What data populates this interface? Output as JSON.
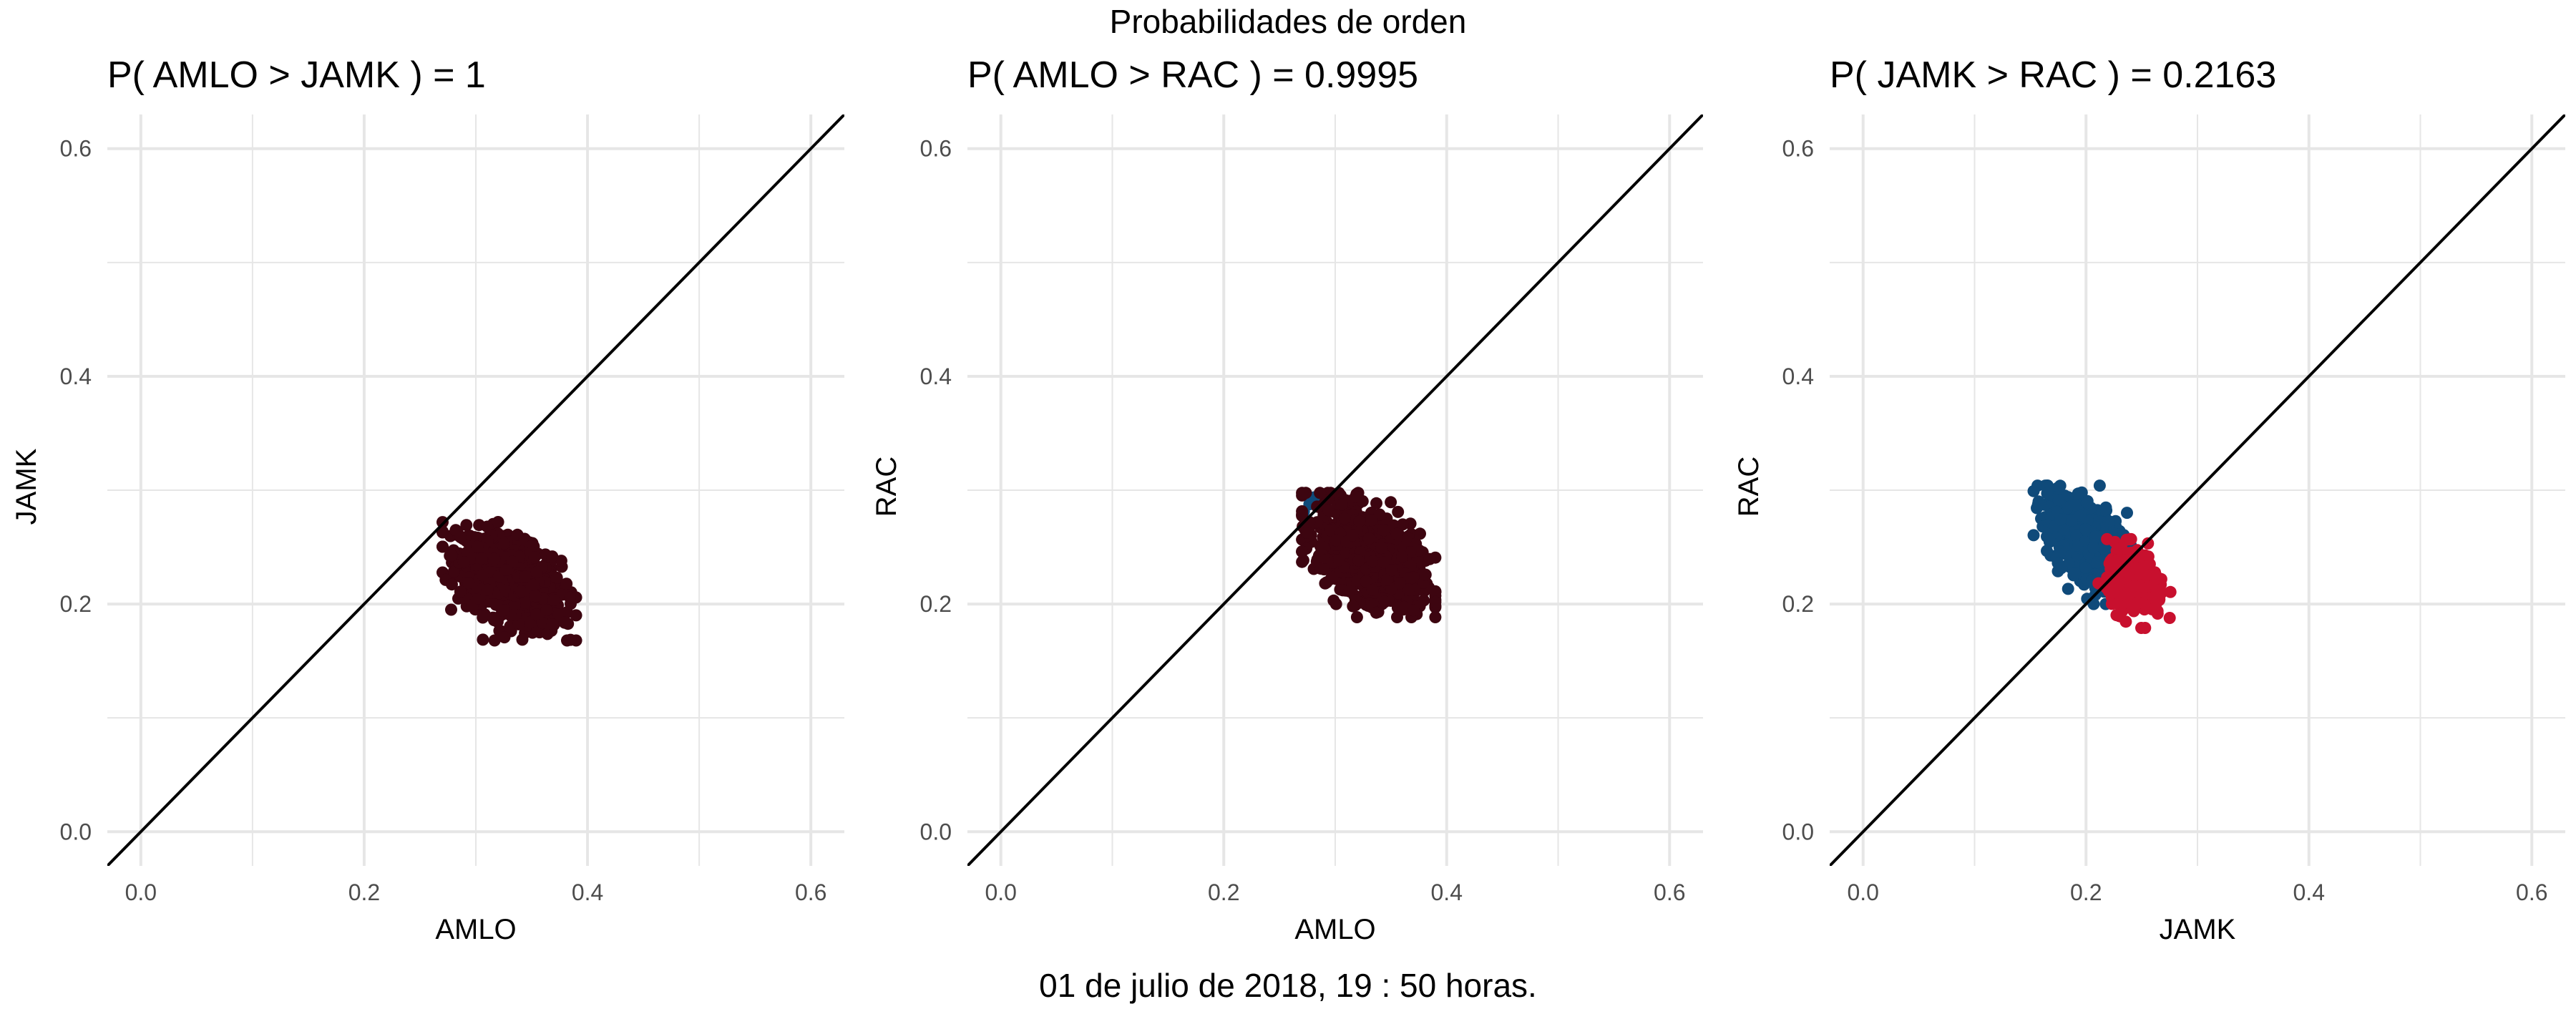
{
  "page": {
    "title": "Probabilidades de orden",
    "caption": "01 de julio de 2018, 19 : 50 horas."
  },
  "colors": {
    "dark_red": "#3d0510",
    "blue": "#0f4a7a",
    "red": "#c8102e",
    "line": "#000000",
    "grid": "#e6e6e6",
    "text": "#4d4d4d",
    "title": "#000000"
  },
  "chart_data": [
    {
      "type": "scatter",
      "title": "P( AMLO > JAMK ) = 1",
      "xlabel": "AMLO",
      "ylabel": "JAMK",
      "xlim": [
        -0.03,
        0.63
      ],
      "ylim": [
        -0.03,
        0.63
      ],
      "xticks": [
        "0.0",
        "0.2",
        "0.4",
        "0.6"
      ],
      "yticks": [
        "0.0",
        "0.2",
        "0.4",
        "0.6"
      ],
      "grid": true,
      "reference_line": "y = x",
      "series": [
        {
          "color_key": "dark_red",
          "count": 950,
          "center": [
            0.33,
            0.22
          ],
          "spread": [
            0.023,
            0.02
          ],
          "corr": -0.45,
          "fraction": 1.0
        }
      ]
    },
    {
      "type": "scatter",
      "title": "P( AMLO > RAC ) = 0.9995",
      "xlabel": "AMLO",
      "ylabel": "RAC",
      "xlim": [
        -0.03,
        0.63
      ],
      "ylim": [
        -0.03,
        0.63
      ],
      "xticks": [
        "0.0",
        "0.2",
        "0.4",
        "0.6"
      ],
      "yticks": [
        "0.0",
        "0.2",
        "0.4",
        "0.6"
      ],
      "grid": true,
      "reference_line": "y = x",
      "series": [
        {
          "color_key": "blue",
          "count": 6,
          "center": [
            0.28,
            0.287
          ],
          "spread": [
            0.006,
            0.004
          ],
          "corr": 0.0,
          "fraction": 0.0005
        },
        {
          "color_key": "dark_red",
          "count": 950,
          "center": [
            0.33,
            0.243
          ],
          "spread": [
            0.023,
            0.021
          ],
          "corr": -0.45,
          "fraction": 0.9995
        }
      ]
    },
    {
      "type": "scatter",
      "title": "P( JAMK > RAC ) = 0.2163",
      "xlabel": "JAMK",
      "ylabel": "RAC",
      "xlim": [
        -0.03,
        0.63
      ],
      "ylim": [
        -0.03,
        0.63
      ],
      "xticks": [
        "0.0",
        "0.2",
        "0.4",
        "0.6"
      ],
      "yticks": [
        "0.0",
        "0.2",
        "0.4",
        "0.6"
      ],
      "grid": true,
      "reference_line": "y = x",
      "series": [
        {
          "color_key": "blue",
          "count": 760,
          "center": [
            0.205,
            0.252
          ],
          "spread": [
            0.02,
            0.02
          ],
          "corr": -0.55,
          "fraction": 0.7837
        },
        {
          "color_key": "red",
          "count": 220,
          "center": [
            0.245,
            0.218
          ],
          "spread": [
            0.013,
            0.015
          ],
          "corr": -0.3,
          "fraction": 0.2163
        }
      ]
    }
  ]
}
